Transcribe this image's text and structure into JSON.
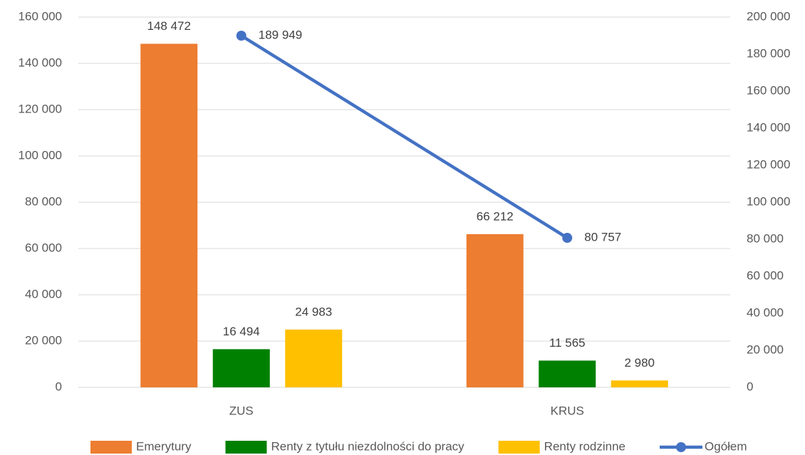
{
  "chart_data": {
    "type": "bar",
    "categories": [
      "ZUS",
      "KRUS"
    ],
    "series": [
      {
        "name": "Emerytury",
        "color": "#ED7D31",
        "values": [
          148472,
          66212
        ],
        "value_labels": [
          "148 472",
          "66 212"
        ]
      },
      {
        "name": "Renty z tytułu niezdolności do pracy",
        "color": "#008000",
        "values": [
          16494,
          11565
        ],
        "value_labels": [
          "16 494",
          "11 565"
        ]
      },
      {
        "name": "Renty rodzinne",
        "color": "#FFC000",
        "values": [
          24983,
          2980
        ],
        "value_labels": [
          "24 983",
          "2 980"
        ]
      },
      {
        "name": "Ogółem",
        "type": "line",
        "axis": "y2",
        "color": "#4472C4",
        "values": [
          189949,
          80757
        ],
        "value_labels": [
          "189 949",
          "80 757"
        ]
      }
    ],
    "ylim": [
      0,
      160000
    ],
    "yticks": [
      0,
      {
        "value": 20000,
        "label": "20 000"
      },
      {
        "value": 40000,
        "label": "40 000"
      },
      {
        "value": 60000,
        "label": "60 000"
      },
      {
        "value": 80000,
        "label": "80 000"
      },
      {
        "value": 100000,
        "label": "100 000"
      },
      {
        "value": 120000,
        "label": "120 000"
      },
      {
        "value": 140000,
        "label": "140 000"
      },
      {
        "value": 160000,
        "label": "160 000"
      }
    ],
    "y2lim": [
      0,
      200000
    ],
    "y2ticks": [
      0,
      {
        "value": 20000,
        "label": "20 000"
      },
      {
        "value": 40000,
        "label": "40 000"
      },
      {
        "value": 60000,
        "label": "60 000"
      },
      {
        "value": 80000,
        "label": "80 000"
      },
      {
        "value": 100000,
        "label": "100 000"
      },
      {
        "value": 120000,
        "label": "120 000"
      },
      {
        "value": 140000,
        "label": "140 000"
      },
      {
        "value": 160000,
        "label": "160 000"
      },
      {
        "value": 180000,
        "label": "180 000"
      },
      {
        "value": 200000,
        "label": "200 000"
      }
    ],
    "grid": true,
    "legend": "bottom"
  }
}
